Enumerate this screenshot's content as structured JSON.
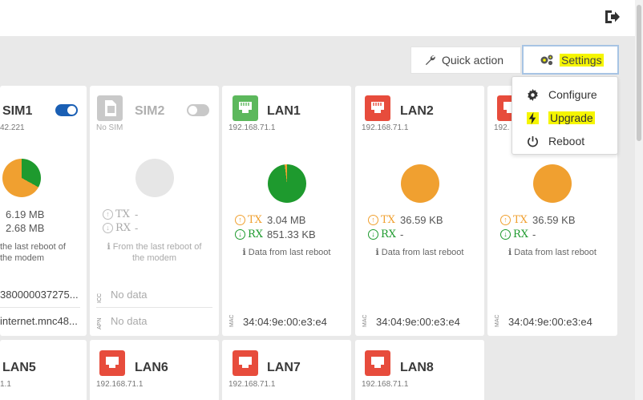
{
  "header": {
    "logout_icon": "logout-icon"
  },
  "toolbar": {
    "quick_action_label": "Quick action",
    "settings_label": "Settings"
  },
  "settings_menu": {
    "items": [
      {
        "label": "Configure",
        "icon": "gear-icon"
      },
      {
        "label": "Upgrade",
        "icon": "bolt-icon"
      },
      {
        "label": "Reboot",
        "icon": "power-icon"
      }
    ]
  },
  "cards": {
    "sim1": {
      "title": "SIM1",
      "ip": "42.221",
      "tx": "6.19 MB",
      "rx": "2.68 MB",
      "note_line1": "the last reboot of",
      "note_line2": "the modem",
      "iccid": "380000037275...",
      "apn": "internet.mnc48...",
      "enabled": true
    },
    "sim2": {
      "title": "SIM2",
      "status": "No SIM",
      "tx_label": "TX",
      "tx": "-",
      "rx_label": "RX",
      "rx": "-",
      "note_line1": "From the last reboot of",
      "note_line2": "the modem",
      "iccid_label": "ICC",
      "iccid": "No data",
      "apn_label": "APN",
      "apn": "No data",
      "enabled": false
    },
    "lan1": {
      "title": "LAN1",
      "ip": "192.168.71.1",
      "tx_label": "TX",
      "tx": "3.04 MB",
      "rx_label": "RX",
      "rx": "851.33 KB",
      "note": "Data from last reboot",
      "mac_label": "MAC",
      "mac": "34:04:9e:00:e3:e4"
    },
    "lan2": {
      "title": "LAN2",
      "ip": "192.168.71.1",
      "tx_label": "TX",
      "tx": "36.59 KB",
      "rx_label": "RX",
      "rx": "-",
      "note": "Data from last reboot",
      "mac_label": "MAC",
      "mac": "34:04:9e:00:e3:e4"
    },
    "lan3": {
      "ip": "192.",
      "tx_label": "TX",
      "tx": "36.59 KB",
      "rx_label": "RX",
      "rx": "-",
      "note": "Data from last reboot",
      "mac_label": "MAC",
      "mac": "34:04:9e:00:e3:e4"
    },
    "lan5": {
      "title": "LAN5",
      "ip": "1.1"
    },
    "lan6": {
      "title": "LAN6",
      "ip": "192.168.71.1"
    },
    "lan7": {
      "title": "LAN7",
      "ip": "192.168.71.1"
    },
    "lan8": {
      "title": "LAN8",
      "ip": "192.168.71.1"
    }
  },
  "colors": {
    "accent_blue": "#1a5fb4",
    "connected_green": "#5cb85c",
    "disconnected_red": "#e74c3c",
    "tx_orange": "#f0a030",
    "rx_green": "#1e9a2e",
    "highlight": "#f5f500"
  }
}
